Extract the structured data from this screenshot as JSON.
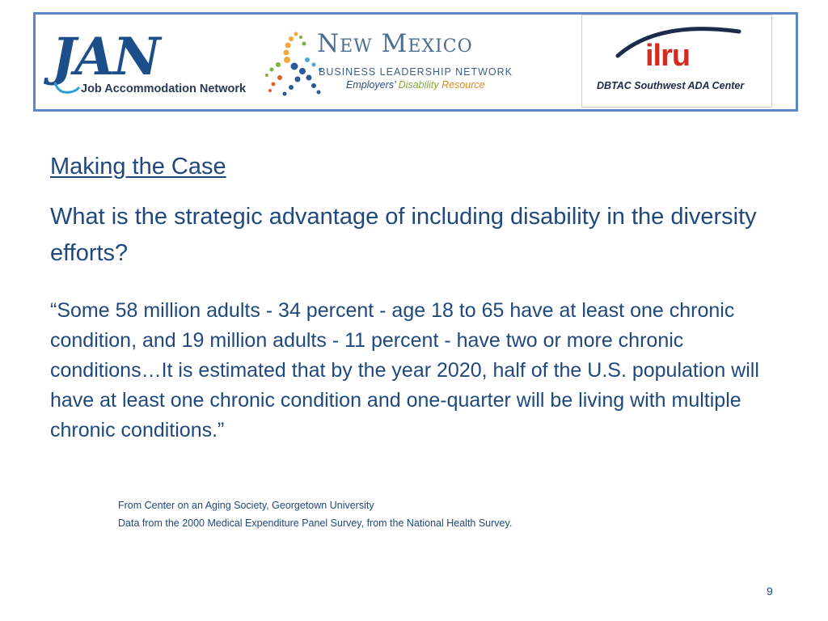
{
  "logos": {
    "jan": {
      "mark": "JAN",
      "subtitle": "Job Accommodation Network"
    },
    "nmbln": {
      "title": "New Mexico",
      "line1": "BUSINESS LEADERSHIP NETWORK",
      "employers": "Employers’",
      "disability": "Disability",
      "resource": "Resource"
    },
    "ilru": {
      "mark": "ilru",
      "subtitle": "DBTAC Southwest ADA Center"
    }
  },
  "slide": {
    "heading": "Making the Case",
    "question": "What is the strategic advantage of including disability in the diversity efforts?",
    "quote": "“Some 58 million adults - 34 percent - age 18 to 65 have at least one chronic condition, and 19 million adults - 11 percent - have two or more chronic conditions…It is estimated that by the year 2020, half of the U.S. population will have at least one chronic condition and one-quarter will be living with multiple chronic conditions.”",
    "sources": [
      "From Center on an Aging Society, Georgetown University",
      "Data from the 2000 Medical Expenditure Panel Survey, from the National Health Survey."
    ],
    "page_number": "9"
  },
  "colors": {
    "text": "#1f497d",
    "banner_border": "#5b87c9",
    "ilru_red": "#d42a1f"
  }
}
